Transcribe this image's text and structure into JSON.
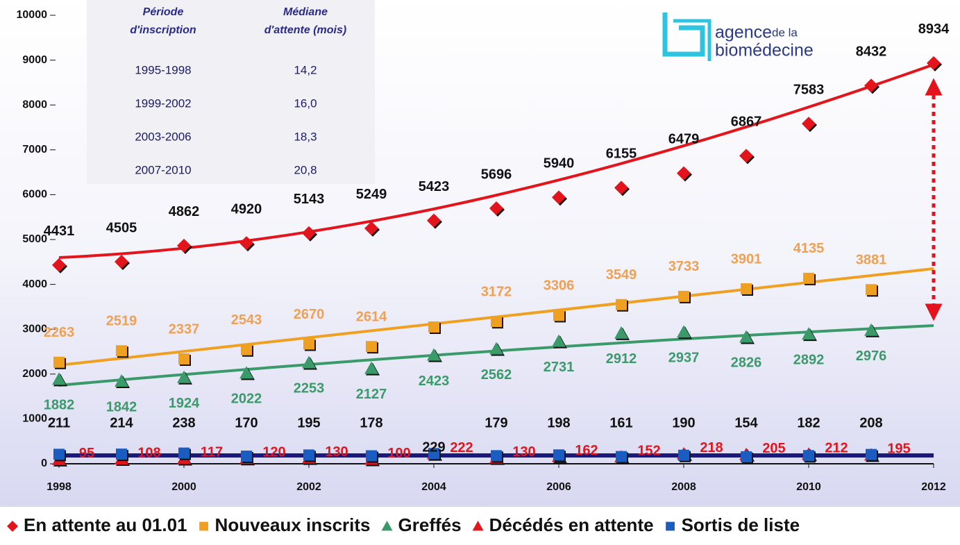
{
  "chart_data": {
    "type": "scatter",
    "x": [
      1998,
      1999,
      2000,
      2001,
      2002,
      2003,
      2004,
      2005,
      2006,
      2007,
      2008,
      2009,
      2010,
      2011,
      2012
    ],
    "xlim": [
      1998,
      2012
    ],
    "xticks": [
      1998,
      2000,
      2002,
      2004,
      2006,
      2008,
      2010,
      2012
    ],
    "ylim": [
      0,
      10000
    ],
    "yticks": [
      0,
      1000,
      2000,
      3000,
      4000,
      5000,
      6000,
      7000,
      8000,
      9000,
      10000
    ],
    "series": [
      {
        "name": "En attente au 01.01",
        "color": "#e3141c",
        "marker": "diamond",
        "label_color": "#111111",
        "values": [
          4431,
          4505,
          4862,
          4920,
          5143,
          5249,
          5423,
          5696,
          5940,
          6155,
          6479,
          6867,
          7583,
          8432,
          8934
        ]
      },
      {
        "name": "Nouveaux inscrits",
        "color": "#f0a020",
        "marker": "square",
        "label_color": "#f0a050",
        "values": [
          2263,
          2519,
          2337,
          2543,
          2670,
          2614,
          3050,
          3172,
          3306,
          3549,
          3733,
          3901,
          4135,
          3881,
          null
        ],
        "value_labels": [
          "2263",
          "2519",
          "2337",
          "2543",
          "2670",
          "2614",
          null,
          "3172",
          "3306",
          "3549",
          "3733",
          "3901",
          "4135",
          "3881",
          null
        ]
      },
      {
        "name": "Greffés",
        "color": "#3a9a6a",
        "marker": "triangle",
        "label_color": "#3a9a6a",
        "values": [
          1882,
          1842,
          1924,
          2022,
          2253,
          2127,
          2423,
          2562,
          2731,
          2912,
          2937,
          2826,
          2892,
          2976,
          null
        ]
      },
      {
        "name": "Décédés en attente",
        "color": "#e3141c",
        "marker": "triangle",
        "label_color": "#e3141c",
        "values": [
          95,
          108,
          117,
          120,
          130,
          100,
          222,
          130,
          162,
          152,
          218,
          205,
          212,
          195,
          null
        ]
      },
      {
        "name": "Sortis de liste",
        "color": "#1a5cc0",
        "marker": "square",
        "label_color": "#111111",
        "values": [
          211,
          214,
          238,
          170,
          195,
          178,
          229,
          179,
          198,
          161,
          190,
          154,
          182,
          208,
          null
        ]
      }
    ]
  },
  "table": {
    "header": [
      "Période\nd'inscription",
      "Médiane\nd'attente (mois)"
    ],
    "rows": [
      [
        "1995-1998",
        "14,2"
      ],
      [
        "1999-2002",
        "16,0"
      ],
      [
        "2003-2006",
        "18,3"
      ],
      [
        "2007-2010",
        "20,8"
      ]
    ]
  },
  "logo": [
    "agence",
    "de la",
    "biomédecine"
  ]
}
